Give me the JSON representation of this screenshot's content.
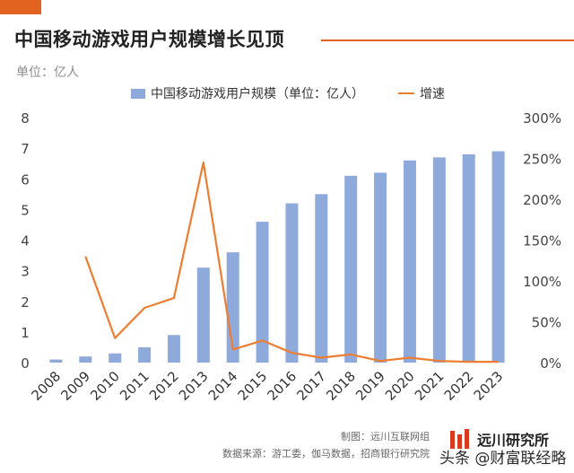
{
  "header": {
    "title": "中国移动游戏用户规模增长见顶",
    "unit": "单位：亿人"
  },
  "chart_data": {
    "type": "bar",
    "categories": [
      "2008",
      "2009",
      "2010",
      "2011",
      "2012",
      "2013",
      "2014",
      "2015",
      "2016",
      "2017",
      "2018",
      "2019",
      "2020",
      "2021",
      "2022",
      "2023"
    ],
    "series": [
      {
        "name": "中国移动游戏用户规模（单位：亿人）",
        "type": "bar",
        "axis": "left",
        "values": [
          0.1,
          0.2,
          0.3,
          0.5,
          0.9,
          3.1,
          3.6,
          4.6,
          5.2,
          5.5,
          6.1,
          6.2,
          6.6,
          6.7,
          6.8,
          6.9
        ]
      },
      {
        "name": "增速",
        "type": "line",
        "axis": "right",
        "values": [
          null,
          130,
          30,
          67,
          79,
          245,
          16,
          27,
          12,
          6,
          10,
          2,
          6,
          2,
          1,
          1
        ]
      }
    ],
    "y_left": {
      "min": 0,
      "max": 8,
      "ticks": [
        "0",
        "1",
        "2",
        "3",
        "4",
        "5",
        "6",
        "7",
        "8"
      ]
    },
    "y_right": {
      "min": 0,
      "max": 300,
      "ticks": [
        "0%",
        "50%",
        "100%",
        "150%",
        "200%",
        "250%",
        "300%"
      ]
    },
    "grid": false,
    "legend": "top",
    "colors": {
      "bar": "#8eaadb",
      "line": "#ed7d31"
    }
  },
  "footer": {
    "credit": "制图：远川互联网组",
    "source": "数据来源：游工委，伽马数据，招商银行研究院",
    "brand": "远川研究所",
    "watermark": "头条 @财富联经略"
  }
}
